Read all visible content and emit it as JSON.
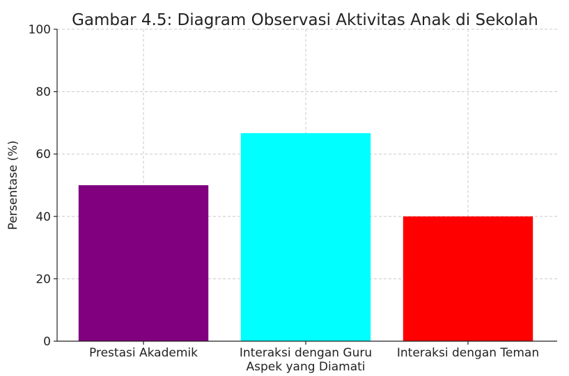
{
  "chart_data": {
    "type": "bar",
    "title": "Gambar 4.5: Diagram Observasi Aktivitas Anak di Sekolah",
    "x_label": "Aspek yang Diamati",
    "y_label": "Persentase (%)",
    "categories": [
      "Prestasi Akademik",
      "Interaksi dengan Guru",
      "Interaksi dengan Teman"
    ],
    "values": [
      50,
      66.7,
      40
    ],
    "colors": [
      "#800080",
      "#00ffff",
      "#ff0000"
    ],
    "ylim": [
      0,
      100
    ],
    "yticks": [
      0,
      20,
      40,
      60,
      80,
      100
    ],
    "grid": true
  }
}
